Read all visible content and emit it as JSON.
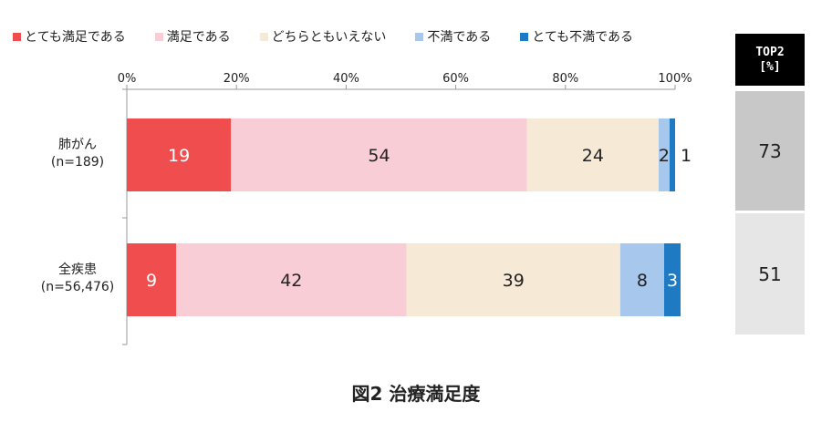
{
  "chart_data": {
    "type": "bar",
    "orientation": "horizontal",
    "stacked": true,
    "title": "図2 治療満足度",
    "xlim": [
      0,
      100
    ],
    "x_ticks": [
      "0%",
      "20%",
      "40%",
      "60%",
      "80%",
      "100%"
    ],
    "legend_position": "top",
    "categories": [
      "肺がん",
      "全疾患"
    ],
    "category_sublabels": [
      "(n=189)",
      "(n=56,476)"
    ],
    "series": [
      {
        "name": "とても満足である",
        "color": "#f04e4e",
        "values": [
          19,
          9
        ]
      },
      {
        "name": "満足である",
        "color": "#f8cdd5",
        "values": [
          54,
          42
        ]
      },
      {
        "name": "どちらともいえない",
        "color": "#f6ead6",
        "values": [
          24,
          39
        ]
      },
      {
        "name": "不満である",
        "color": "#a7c8ec",
        "values": [
          2,
          8
        ]
      },
      {
        "name": "とても不満である",
        "color": "#1e7ac2",
        "values": [
          1,
          3
        ]
      }
    ],
    "top2": {
      "header": [
        "TOP2",
        "[%]"
      ],
      "values": [
        73,
        51
      ]
    }
  }
}
